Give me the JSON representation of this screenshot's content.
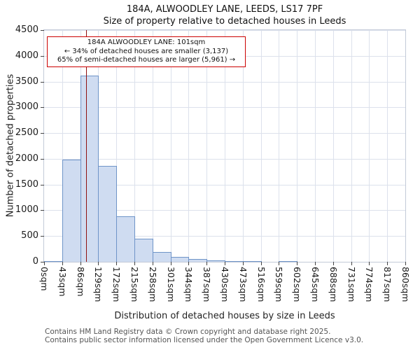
{
  "title": "184A, ALWOODLEY LANE, LEEDS, LS17 7PF",
  "subtitle": "Size of property relative to detached houses in Leeds",
  "annotation": {
    "line1": "184A ALWOODLEY LANE: 101sqm",
    "line2": "← 34% of detached houses are smaller (3,137)",
    "line3": "65% of semi-detached houses are larger (5,961) →"
  },
  "footer": {
    "line1": "Contains HM Land Registry data © Crown copyright and database right 2025.",
    "line2": "Contains public sector information licensed under the Open Government Licence v3.0."
  },
  "chart_data": {
    "type": "bar",
    "title": "184A, ALWOODLEY LANE, LEEDS, LS17 7PF",
    "subtitle": "Size of property relative to detached houses in Leeds",
    "xlabel": "Distribution of detached houses by size in Leeds",
    "ylabel": "Number of detached properties",
    "x_max": 860,
    "bin_width": 43,
    "ylim": [
      0,
      4500
    ],
    "yticks": [
      0,
      500,
      1000,
      1500,
      2000,
      2500,
      3000,
      3500,
      4000,
      4500
    ],
    "categories": [
      "0sqm",
      "43sqm",
      "86sqm",
      "129sqm",
      "172sqm",
      "215sqm",
      "258sqm",
      "301sqm",
      "344sqm",
      "387sqm",
      "430sqm",
      "473sqm",
      "516sqm",
      "559sqm",
      "602sqm",
      "645sqm",
      "688sqm",
      "731sqm",
      "774sqm",
      "817sqm",
      "860sqm"
    ],
    "values": [
      15,
      1980,
      3620,
      1860,
      880,
      450,
      190,
      100,
      50,
      30,
      15,
      5,
      0,
      15,
      0,
      0,
      0,
      0,
      0,
      0
    ],
    "marker": {
      "value": 101,
      "label": "184A ALWOODLEY LANE: 101sqm"
    },
    "grid": true,
    "legend": false,
    "colors": {
      "bar_fill": "#cfdcf1",
      "bar_border": "#6f94c8",
      "marker_line": "#8f1010",
      "annotation_border": "#cc0000",
      "grid": "#dce1ec"
    }
  }
}
